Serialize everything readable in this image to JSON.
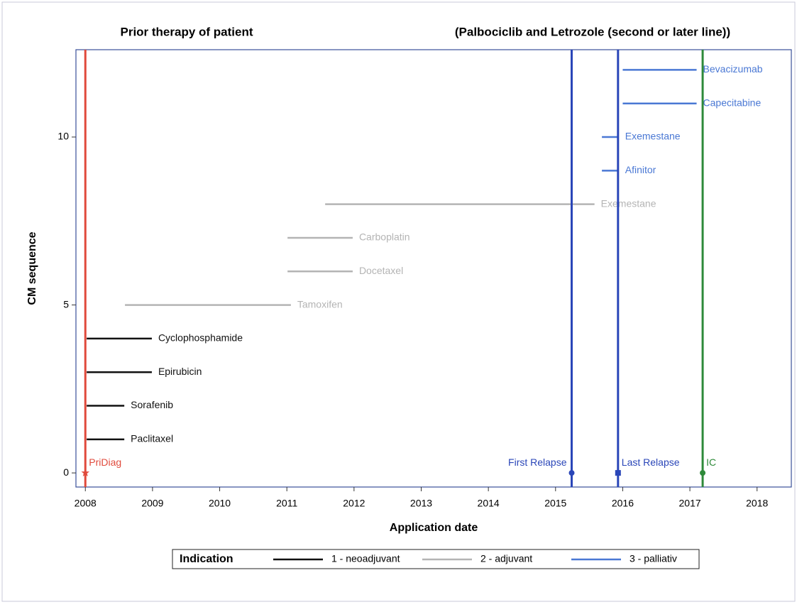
{
  "chart_data": {
    "type": "timeline",
    "titles": [
      "Prior therapy of patient",
      "(Palbociclib and Letrozole (second or later line))"
    ],
    "xlabel": "Application date",
    "ylabel": "CM sequence",
    "xlim": [
      2007.86,
      2018.51
    ],
    "ylim": [
      -0.42,
      12.6
    ],
    "xticks": [
      2008,
      2009,
      2010,
      2011,
      2012,
      2013,
      2014,
      2015,
      2016,
      2017,
      2018
    ],
    "yticks": [
      0,
      5,
      10
    ],
    "legend_title": "Indication",
    "series": [
      {
        "name": "1 - neoadjuvant",
        "color": "#111111",
        "y": [
          1,
          2,
          3,
          4
        ],
        "start": [
          2008.02,
          2008.02,
          2008.02,
          2008.02
        ],
        "end": [
          2008.58,
          2008.58,
          2008.99,
          2008.99
        ],
        "labels": [
          "Paclitaxel",
          "Sorafenib",
          "Epirubicin",
          "Cyclophosphamide"
        ]
      },
      {
        "name": "2 - adjuvant",
        "color": "#b4b4b4",
        "y": [
          5,
          6,
          7,
          8
        ],
        "start": [
          2008.59,
          2011.01,
          2011.01,
          2011.57
        ],
        "end": [
          2011.06,
          2011.98,
          2011.98,
          2015.58
        ],
        "labels": [
          "Tamoxifen",
          "Docetaxel",
          "Carboplatin",
          "Exemestane"
        ]
      },
      {
        "name": "3 - palliativ",
        "color": "#4a78d4",
        "y": [
          9,
          10,
          11,
          12
        ],
        "start": [
          2015.69,
          2015.69,
          2016.0,
          2016.0
        ],
        "end": [
          2015.94,
          2015.94,
          2017.1,
          2017.1
        ],
        "labels": [
          "Afinitor",
          "Exemestane",
          "Capecitabine",
          "Bevacizumab"
        ]
      }
    ],
    "reference_lines": [
      {
        "x": 2008.0,
        "y": 0,
        "label": "PriDiag",
        "color": "#e04a3c",
        "marker": "star"
      },
      {
        "x": 2015.24,
        "y": 0,
        "label": "First Relapse",
        "color": "#2a46b8",
        "marker": "circle"
      },
      {
        "x": 2015.93,
        "y": 0,
        "label": "Last Relapse",
        "color": "#2a46b8",
        "marker": "square"
      },
      {
        "x": 2017.19,
        "y": 0,
        "label": "IC",
        "color": "#2e8a3a",
        "marker": "circle"
      }
    ]
  }
}
